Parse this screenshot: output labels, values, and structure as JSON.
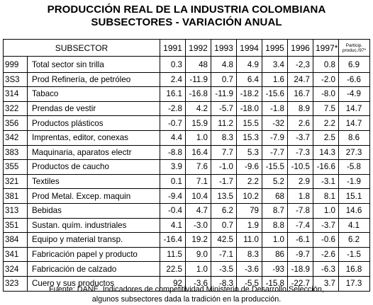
{
  "title_line1": "PRODUCCIÓN REAL DE LA INDUSTRIA COLOMBIANA",
  "title_line2": "SUBSECTORES - VARIACIÓN ANUAL",
  "columns": {
    "subsector": "SUBSECTOR",
    "years": [
      "1991",
      "1992",
      "1993",
      "1994",
      "1995",
      "1996",
      "1997*"
    ],
    "particip": [
      "Particip.",
      "produc./97*"
    ]
  },
  "rows": [
    {
      "code": "999",
      "name": "Total sector sin trilla",
      "values": [
        "0.3",
        "48",
        "4.8",
        "4.9",
        "3.4",
        "-2,3",
        "0.8",
        "6.9"
      ]
    },
    {
      "code": "3S3",
      "name": "Prod Refinería, de petróleo",
      "values": [
        "2.4",
        "-11.9",
        "0.7",
        "6.4",
        "1.6",
        "24.7",
        "-2.0",
        "-6.6"
      ]
    },
    {
      "code": "314",
      "name": "Tabaco",
      "values": [
        "16.1",
        "-16.8",
        "-11.9",
        "-18.2",
        "-15.6",
        "16.7",
        "-8.0",
        "-4.9"
      ]
    },
    {
      "code": "322",
      "name": "Prendas de vestir",
      "values": [
        "-2.8",
        "4.2",
        "-5.7",
        "-18.0",
        "-1.8",
        "8.9",
        "7.5",
        "14.7"
      ]
    },
    {
      "code": "356",
      "name": "Productos plásticos",
      "values": [
        "-0.7",
        "15.9",
        "11.2",
        "15.5",
        "-32",
        "2.6",
        "2.2",
        "14.7"
      ]
    },
    {
      "code": "342",
      "name": "Imprentas, editor, conexas",
      "values": [
        "4.4",
        "1.0",
        "8.3",
        "15.3",
        "-7.9",
        "-3.7",
        "2.5",
        "8.6"
      ]
    },
    {
      "code": "383",
      "name": "Maquinaria, aparatos electr",
      "values": [
        "-8.8",
        "16.4",
        "7.7",
        "5.3",
        "-7.7",
        "-7.3",
        "14.3",
        "27.3"
      ]
    },
    {
      "code": "355",
      "name": "Productos de caucho",
      "values": [
        "3.9",
        "7.6",
        "-1.0",
        "-9.6",
        "-15.5",
        "-10.5",
        "-16.6",
        "-5.8"
      ]
    },
    {
      "code": "321",
      "name": "Textiles",
      "values": [
        "0.1",
        "7.1",
        "-1.7",
        "2.2",
        "5.2",
        "2.9",
        "-3.1",
        "-1.9"
      ]
    },
    {
      "code": "381",
      "name": "Prod Metal. Excep. maquin",
      "values": [
        "-9.4",
        "10.4",
        "13.5",
        "10.2",
        "68",
        "1.8",
        "8.1",
        "15.1"
      ]
    },
    {
      "code": "313",
      "name": "Bebidas",
      "values": [
        "-0.4",
        "4.7",
        "6.2",
        "79",
        "8.7",
        "-7.8",
        "1.0",
        "14.6"
      ]
    },
    {
      "code": "351",
      "name": "Sustan. quím. industriales",
      "values": [
        "4.1",
        "-3.0",
        "0.7",
        "1.9",
        "8.8",
        "-7.4",
        "-3.7",
        "4.1"
      ]
    },
    {
      "code": "384",
      "name": "Equipo y material transp.",
      "values": [
        "-16.4",
        "19.2",
        "42.5",
        "11.0",
        "1.0",
        "-6.1",
        "-0.6",
        "6.2"
      ]
    },
    {
      "code": "341",
      "name": "Fabricación papel y producto",
      "values": [
        "11.5",
        "9.0",
        "-7.1",
        "8.3",
        "86",
        "-9.7",
        "-2.6",
        "-1.5"
      ]
    },
    {
      "code": "324",
      "name": "Fabricación de calzado",
      "values": [
        "22.5",
        "1.0",
        "-3.5",
        "-3.6",
        "-93",
        "-18.9",
        "-6.3",
        "16.8"
      ]
    },
    {
      "code": "323",
      "name": "Cuero y sus productos",
      "values": [
        "92",
        "-3.6",
        "-8.3",
        "-5.5",
        "-15.8",
        "-22.7",
        "3.7",
        "17.3"
      ]
    }
  ],
  "footer_line1": "Fuente: DANE. Indicadores de competitividad Ministerio de Desarrollo Selección,",
  "footer_line2": "algunos subsectores dada la tradición en la producción."
}
